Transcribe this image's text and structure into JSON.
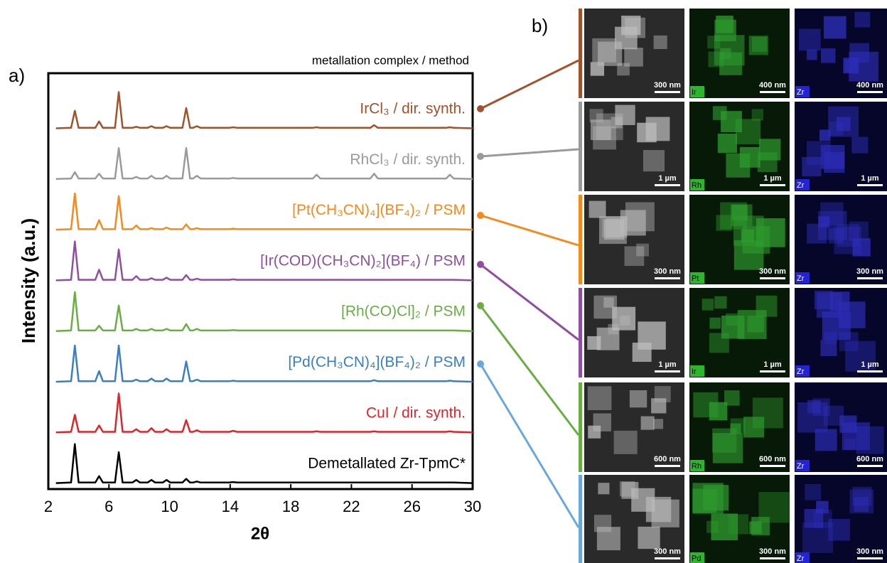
{
  "chart_data": {
    "type": "line",
    "header": "metallation complex / method",
    "panel_label": "a)",
    "y_label": "Intensity (a.u.)",
    "x_label": "2θ",
    "xlim": [
      2,
      30
    ],
    "xticks": [
      2,
      6,
      10,
      14,
      18,
      22,
      26,
      30
    ],
    "x": [
      2.5,
      3.5,
      3.75,
      4.0,
      5.1,
      5.35,
      5.6,
      6.4,
      6.65,
      6.9,
      7.55,
      7.8,
      8.05,
      8.55,
      8.8,
      9.05,
      9.55,
      9.8,
      10.05,
      10.85,
      11.1,
      11.35,
      11.55,
      11.8,
      12.05,
      13.95,
      14.2,
      14.45,
      19.45,
      19.7,
      19.95,
      23.25,
      23.5,
      23.75,
      28.25,
      28.5,
      28.75,
      30
    ],
    "series": [
      {
        "name": "IrCl₃ / dir. synth.",
        "color": "#a0522d",
        "values": [
          2,
          3,
          35,
          3,
          3,
          15,
          3,
          3,
          70,
          3,
          3,
          5,
          3,
          3,
          6,
          3,
          3,
          6,
          3,
          3,
          40,
          3,
          3,
          6,
          3,
          3,
          4,
          3,
          3,
          4,
          3,
          3,
          8,
          3,
          3,
          4,
          3,
          2
        ]
      },
      {
        "name": "RhCl₃ / dir. synth.",
        "color": "#9a9a9a",
        "values": [
          2,
          3,
          15,
          3,
          3,
          12,
          3,
          3,
          60,
          3,
          3,
          6,
          3,
          3,
          8,
          3,
          3,
          8,
          3,
          3,
          60,
          3,
          3,
          8,
          3,
          3,
          4,
          3,
          3,
          10,
          3,
          3,
          12,
          3,
          3,
          10,
          3,
          2
        ]
      },
      {
        "name": "[Pt(CH₃CN)₄](BF₄)₂ / PSM",
        "color": "#f28a1e",
        "values": [
          2,
          3,
          70,
          3,
          3,
          20,
          3,
          3,
          65,
          3,
          3,
          10,
          3,
          3,
          5,
          3,
          3,
          6,
          3,
          3,
          12,
          3,
          3,
          5,
          3,
          3,
          4,
          3,
          3,
          3,
          3,
          3,
          3,
          3,
          3,
          3,
          3,
          2
        ]
      },
      {
        "name": "[Ir(COD)(CH₃CN)₂](BF₄) / PSM",
        "color": "#8e4fa0",
        "values": [
          2,
          3,
          75,
          3,
          3,
          22,
          3,
          3,
          60,
          3,
          3,
          10,
          3,
          3,
          6,
          3,
          3,
          7,
          3,
          3,
          12,
          3,
          3,
          5,
          3,
          3,
          4,
          3,
          3,
          3,
          3,
          3,
          3,
          3,
          3,
          3,
          3,
          2
        ]
      },
      {
        "name": "[Rh(CO)Cl]₂ / PSM",
        "color": "#6aad45",
        "values": [
          2,
          3,
          75,
          3,
          3,
          12,
          3,
          3,
          50,
          3,
          3,
          6,
          3,
          3,
          6,
          3,
          3,
          6,
          3,
          3,
          15,
          3,
          3,
          6,
          3,
          3,
          4,
          3,
          3,
          3,
          3,
          3,
          3,
          3,
          3,
          3,
          3,
          2
        ]
      },
      {
        "name": "[Pd(CH₃CN)₄](BF₄)₂ / PSM",
        "color": "#3a7fbf",
        "values": [
          2,
          3,
          70,
          3,
          3,
          22,
          3,
          3,
          70,
          3,
          3,
          6,
          3,
          3,
          8,
          3,
          3,
          8,
          3,
          3,
          40,
          3,
          3,
          6,
          3,
          3,
          4,
          3,
          3,
          3,
          3,
          3,
          5,
          3,
          3,
          4,
          3,
          2
        ]
      },
      {
        "name": "CuI / dir. synth.",
        "color": "#d9262b",
        "values": [
          2,
          3,
          35,
          3,
          3,
          15,
          3,
          3,
          75,
          3,
          3,
          8,
          3,
          3,
          10,
          3,
          3,
          8,
          3,
          3,
          25,
          3,
          3,
          6,
          3,
          3,
          5,
          3,
          3,
          4,
          3,
          3,
          4,
          3,
          3,
          4,
          3,
          2
        ]
      },
      {
        "name": "Demetallated Zr-TpmC*",
        "color": "#000000",
        "values": [
          2,
          3,
          75,
          3,
          3,
          15,
          3,
          3,
          60,
          3,
          3,
          8,
          3,
          3,
          8,
          3,
          3,
          8,
          3,
          3,
          10,
          3,
          3,
          5,
          3,
          3,
          4,
          3,
          3,
          3,
          3,
          3,
          3,
          3,
          3,
          3,
          3,
          2
        ]
      }
    ]
  },
  "micrographs": {
    "panel_label": "b)",
    "rows": [
      {
        "scale_bars": [
          "300 nm",
          "400 nm",
          "400 nm"
        ],
        "elements": [
          "Ir",
          "Zr"
        ]
      },
      {
        "scale_bars": [
          "1 µm",
          "1 µm",
          "1 µm"
        ],
        "elements": [
          "Rh",
          "Zr"
        ]
      },
      {
        "scale_bars": [
          "300 nm",
          "300 nm",
          "300 nm"
        ],
        "elements": [
          "Pt",
          "Zr"
        ]
      },
      {
        "scale_bars": [
          "1 µm",
          "1 µm",
          "1 µm"
        ],
        "elements": [
          "Ir",
          "Zr"
        ]
      },
      {
        "scale_bars": [
          "600 nm",
          "600 nm",
          "600 nm"
        ],
        "elements": [
          "Rh",
          "Zr"
        ]
      },
      {
        "scale_bars": [
          "300 nm",
          "300 nm",
          "300 nm"
        ],
        "elements": [
          "Pd",
          "Zr"
        ]
      }
    ]
  }
}
